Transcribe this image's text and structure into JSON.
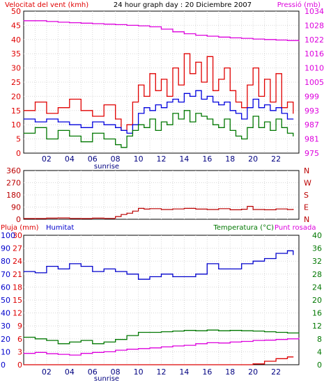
{
  "header": {
    "left_label": "Velocitat del vent (kmh)",
    "center_title": "24 hour graph day : 20 Diciembre 2007",
    "right_label": "Pressió (mb)"
  },
  "colors": {
    "wind": "#e00000",
    "wind_avg": "#0000dd",
    "wind_low": "#007700",
    "pressure": "#dd00dd",
    "direction": "#bb0000",
    "rain": "#dd0000",
    "humidity": "#0000cc",
    "temperature": "#007700",
    "dewpoint": "#dd00dd"
  },
  "sunrise_label": "sunrise",
  "chart_data": [
    {
      "id": "wind-pressure",
      "type": "line",
      "x_ticks": [
        "02",
        "04",
        "06",
        "08",
        "10",
        "12",
        "14",
        "16",
        "18",
        "20",
        "22"
      ],
      "x_range": [
        0,
        24
      ],
      "left_label": "Velocitat del vent (kmh)",
      "left_ticks": [
        "0",
        "5",
        "10",
        "15",
        "20",
        "25",
        "30",
        "35",
        "40",
        "45",
        "50"
      ],
      "left_range": [
        0,
        50
      ],
      "right_label": "Pressió (mb)",
      "right_ticks": [
        "975",
        "981",
        "987",
        "993",
        "999",
        "1005",
        "1010",
        "1016",
        "1022",
        "1028",
        "1034"
      ],
      "right_range": [
        975,
        1034
      ],
      "series": [
        {
          "key": "gust",
          "color_key": "wind",
          "axis": "left",
          "x": [
            0,
            1,
            2,
            3,
            4,
            5,
            6,
            7,
            8,
            8.5,
            9,
            9.5,
            10,
            10.5,
            11,
            11.5,
            12,
            12.5,
            13,
            13.5,
            14,
            14.5,
            15,
            15.5,
            16,
            16.5,
            17,
            17.5,
            18,
            18.5,
            19,
            19.5,
            20,
            20.5,
            21,
            21.5,
            22,
            22.5,
            23,
            23.5
          ],
          "y": [
            15,
            18,
            14,
            16,
            19,
            15,
            13,
            17,
            12,
            8,
            10,
            18,
            24,
            20,
            28,
            22,
            26,
            20,
            30,
            24,
            35,
            28,
            32,
            25,
            34,
            22,
            26,
            30,
            22,
            18,
            16,
            24,
            30,
            20,
            26,
            18,
            28,
            16,
            18,
            14
          ]
        },
        {
          "key": "avg",
          "color_key": "wind_avg",
          "axis": "left",
          "x": [
            0,
            1,
            2,
            3,
            4,
            5,
            6,
            7,
            8,
            8.5,
            9,
            9.5,
            10,
            10.5,
            11,
            11.5,
            12,
            12.5,
            13,
            13.5,
            14,
            14.5,
            15,
            15.5,
            16,
            16.5,
            17,
            17.5,
            18,
            18.5,
            19,
            19.5,
            20,
            20.5,
            21,
            21.5,
            22,
            22.5,
            23,
            23.5
          ],
          "y": [
            12,
            11,
            12,
            11,
            10,
            9,
            11,
            10,
            9,
            8,
            7,
            10,
            14,
            16,
            15,
            17,
            16,
            18,
            19,
            18,
            21,
            20,
            22,
            19,
            20,
            18,
            17,
            18,
            15,
            14,
            12,
            16,
            19,
            16,
            17,
            15,
            16,
            14,
            12,
            12
          ]
        },
        {
          "key": "low",
          "color_key": "wind_low",
          "axis": "left",
          "x": [
            0,
            1,
            2,
            3,
            4,
            5,
            6,
            7,
            8,
            8.5,
            9,
            9.5,
            10,
            10.5,
            11,
            11.5,
            12,
            12.5,
            13,
            13.5,
            14,
            14.5,
            15,
            15.5,
            16,
            16.5,
            17,
            17.5,
            18,
            18.5,
            19,
            19.5,
            20,
            20.5,
            21,
            21.5,
            22,
            22.5,
            23,
            23.5
          ],
          "y": [
            7,
            9,
            5,
            8,
            6,
            4,
            7,
            5,
            3,
            2,
            6,
            8,
            10,
            9,
            12,
            8,
            11,
            10,
            14,
            12,
            15,
            11,
            14,
            13,
            12,
            10,
            9,
            12,
            8,
            6,
            5,
            9,
            13,
            9,
            11,
            8,
            12,
            9,
            7,
            6
          ]
        },
        {
          "key": "pressure",
          "color_key": "pressure",
          "axis": "right",
          "x": [
            0,
            1,
            2,
            3,
            4,
            5,
            6,
            7,
            8,
            9,
            10,
            11,
            12,
            13,
            14,
            15,
            16,
            17,
            18,
            19,
            20,
            21,
            22,
            23,
            24
          ],
          "y": [
            1030,
            1030,
            1029.7,
            1029.4,
            1029.2,
            1029,
            1028.8,
            1028.6,
            1028.4,
            1028.1,
            1027.9,
            1027.5,
            1026.5,
            1025.4,
            1024.6,
            1024,
            1023.6,
            1023.2,
            1022.9,
            1022.7,
            1022.4,
            1022.2,
            1022,
            1021.8,
            1021.6
          ]
        }
      ]
    },
    {
      "id": "direction",
      "type": "line",
      "x_range": [
        0,
        24
      ],
      "left_ticks": [
        "0",
        "90",
        "180",
        "270",
        "360"
      ],
      "left_range": [
        0,
        360
      ],
      "right_ticks": [
        "N",
        "E",
        "S",
        "W",
        "N"
      ],
      "series": [
        {
          "key": "dir",
          "color_key": "direction",
          "x": [
            0,
            1,
            2,
            3,
            4,
            5,
            6,
            7,
            8,
            8.5,
            9,
            9.5,
            10,
            10.5,
            11,
            12,
            13,
            14,
            15,
            16,
            17,
            18,
            19,
            19.5,
            20,
            21,
            22,
            23,
            23.5
          ],
          "y": [
            5,
            5,
            8,
            10,
            6,
            5,
            8,
            6,
            20,
            35,
            45,
            60,
            80,
            75,
            78,
            72,
            76,
            80,
            75,
            72,
            78,
            70,
            74,
            95,
            72,
            70,
            76,
            72,
            74
          ]
        }
      ]
    },
    {
      "id": "rain-humidity-temp",
      "type": "line",
      "x_ticks": [
        "02",
        "04",
        "06",
        "08",
        "10",
        "12",
        "14",
        "16",
        "18",
        "20",
        "22"
      ],
      "x_range": [
        0,
        24
      ],
      "left_label": "Pluja (mm)",
      "left_ticks": [
        "0",
        "3",
        "6",
        "9",
        "12",
        "15",
        "18",
        "21",
        "24",
        "27",
        "30"
      ],
      "left_range": [
        0,
        30
      ],
      "humidity_label": "Humitat",
      "humidity_ticks": [
        "0",
        "10",
        "20",
        "30",
        "40",
        "50",
        "60",
        "70",
        "80",
        "90",
        "100"
      ],
      "humidity_range": [
        0,
        100
      ],
      "right_label": "Temperatura (°C)",
      "right_label_2": "Punt rosada",
      "right_ticks": [
        "0",
        "4",
        "8",
        "12",
        "16",
        "20",
        "24",
        "28",
        "32",
        "36",
        "40"
      ],
      "right_range": [
        0,
        40
      ],
      "series": [
        {
          "key": "humidity",
          "color_key": "humidity",
          "axis": "humidity",
          "x": [
            0,
            1,
            2,
            3,
            4,
            5,
            6,
            7,
            8,
            9,
            10,
            11,
            12,
            13,
            14,
            15,
            16,
            17,
            18,
            19,
            20,
            21,
            22,
            23,
            23.5
          ],
          "y": [
            72,
            71,
            76,
            74,
            78,
            76,
            72,
            74,
            72,
            70,
            66,
            68,
            70,
            68,
            68,
            70,
            78,
            74,
            74,
            78,
            80,
            82,
            86,
            88,
            85
          ]
        },
        {
          "key": "temperature",
          "color_key": "temperature",
          "axis": "right",
          "x": [
            0,
            1,
            2,
            3,
            4,
            5,
            6,
            7,
            8,
            9,
            10,
            11,
            12,
            13,
            14,
            15,
            16,
            17,
            18,
            19,
            20,
            21,
            22,
            23,
            24
          ],
          "y": [
            8.5,
            8,
            7.5,
            6.5,
            7,
            7.5,
            6.5,
            7,
            7.8,
            9,
            10,
            10,
            10.2,
            10.4,
            10.6,
            10.5,
            10.7,
            10.5,
            10.6,
            10.5,
            10.4,
            10.2,
            10,
            9.8,
            9.7
          ]
        },
        {
          "key": "dewpoint",
          "color_key": "dewpoint",
          "axis": "right",
          "x": [
            0,
            1,
            2,
            3,
            4,
            5,
            6,
            7,
            8,
            9,
            10,
            11,
            12,
            13,
            14,
            15,
            16,
            17,
            18,
            19,
            20,
            21,
            22,
            23,
            24
          ],
          "y": [
            3.5,
            3.8,
            3.4,
            3.2,
            3.0,
            3.5,
            3.8,
            4.0,
            4.5,
            4.8,
            5.0,
            5.2,
            5.5,
            5.8,
            6.0,
            6.5,
            6.8,
            6.7,
            7.0,
            7.2,
            7.5,
            7.6,
            7.8,
            8.0,
            8.2
          ]
        },
        {
          "key": "rain",
          "color_key": "rain",
          "axis": "left",
          "x": [
            0,
            10,
            19,
            20,
            21,
            22,
            23,
            23.5
          ],
          "y": [
            0,
            0,
            0,
            0.2,
            0.8,
            1.4,
            1.8,
            1.8
          ]
        }
      ]
    }
  ]
}
